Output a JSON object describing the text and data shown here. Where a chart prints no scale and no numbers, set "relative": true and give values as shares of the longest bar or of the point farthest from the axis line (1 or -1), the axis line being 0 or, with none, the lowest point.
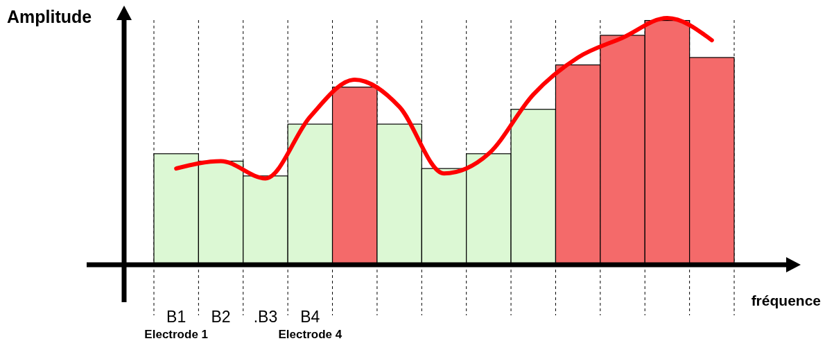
{
  "chart_data": {
    "type": "bar",
    "relative": true,
    "ylabel": "Amplitude",
    "xlabel": "fréquence",
    "categories": [
      "B1",
      "B2",
      ".B3",
      "B4",
      null,
      null,
      null,
      null,
      null,
      null,
      null,
      null,
      null
    ],
    "series": [
      {
        "colors": [
          "#dcf8d4",
          "#dcf8d4",
          "#dcf8d4",
          "#dcf8d4",
          "#f46a6a",
          "#dcf8d4",
          "#dcf8d4",
          "#dcf8d4",
          "#dcf8d4",
          "#f46a6a",
          "#f46a6a",
          "#f46a6a",
          "#f46a6a"
        ],
        "values": [
          0.45,
          0.42,
          0.36,
          0.57,
          0.72,
          0.57,
          0.39,
          0.45,
          0.63,
          0.81,
          0.93,
          0.99,
          0.84
        ]
      },
      {
        "type": "line",
        "color": "#ff0000",
        "values": [
          0.39,
          0.42,
          0.35,
          0.6,
          0.75,
          0.64,
          0.37,
          0.45,
          0.69,
          0.84,
          0.92,
          1,
          0.91
        ]
      }
    ],
    "grid": "x",
    "annotations": [
      "Electrode 1",
      "Electrode 4"
    ]
  }
}
